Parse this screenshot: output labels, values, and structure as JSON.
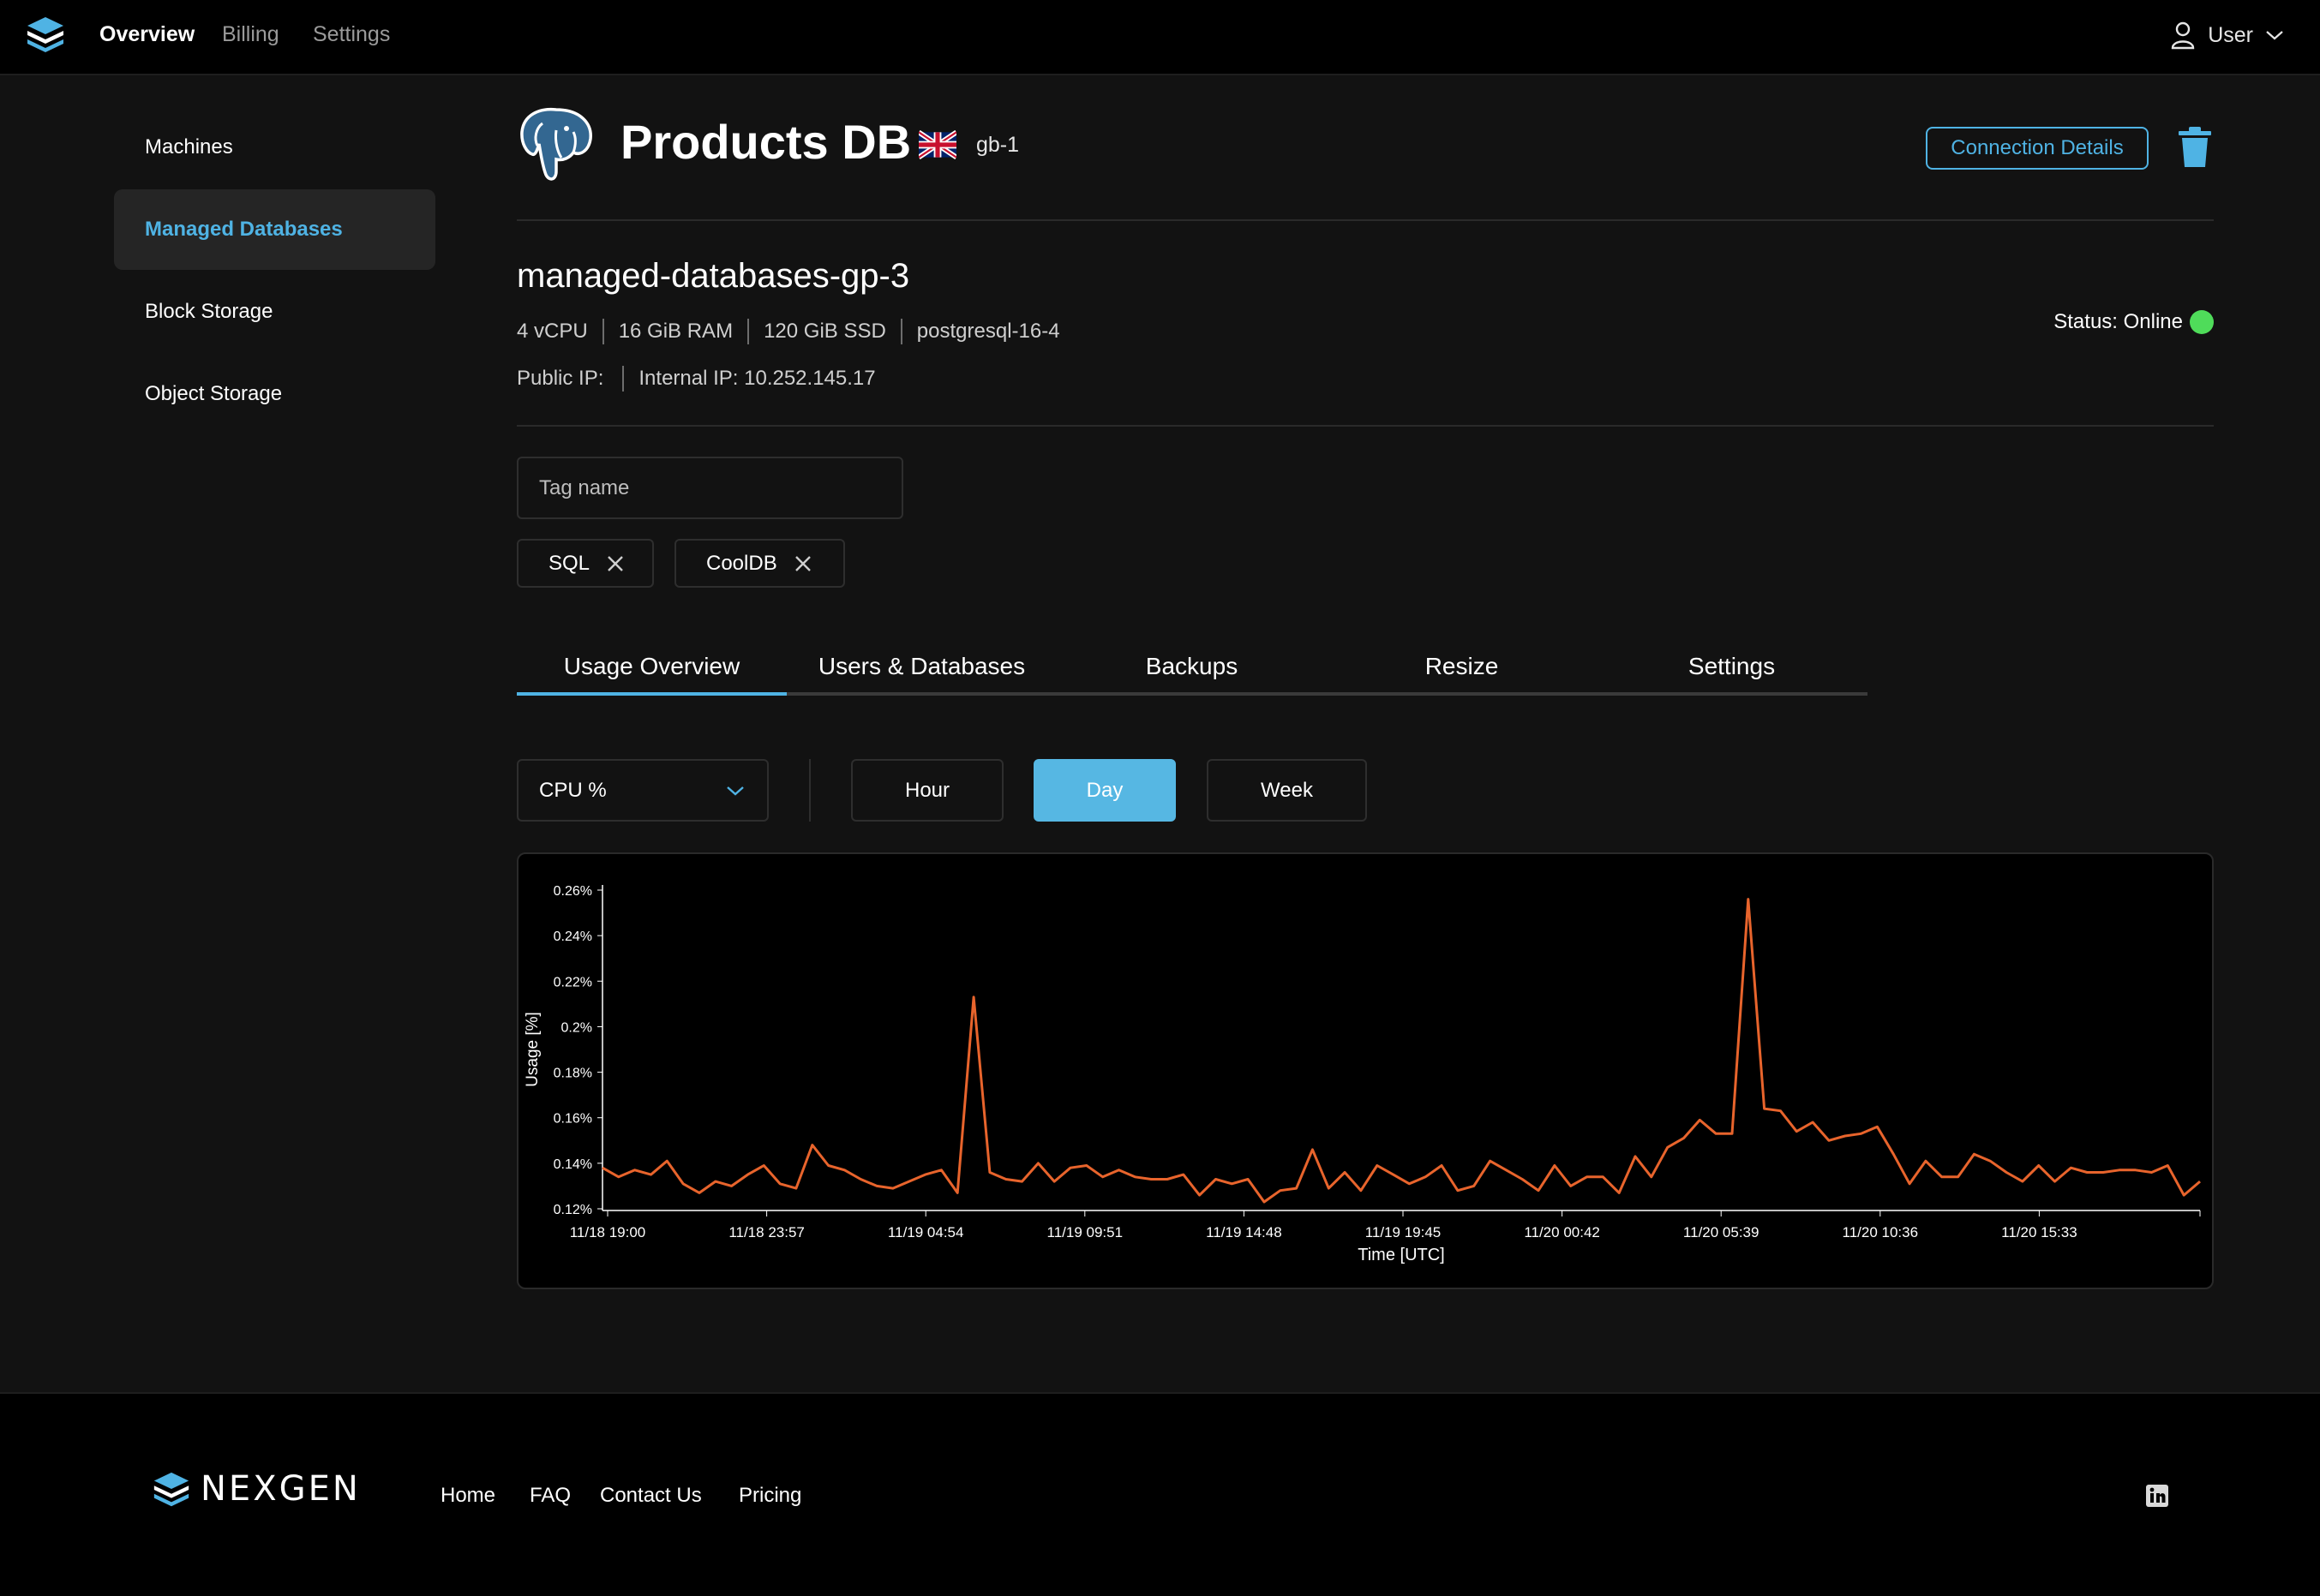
{
  "topnav": {
    "links": [
      {
        "label": "Overview",
        "active": true
      },
      {
        "label": "Billing",
        "active": false
      },
      {
        "label": "Settings",
        "active": false
      }
    ],
    "user_label": "User"
  },
  "sidebar": {
    "items": [
      {
        "label": "Machines",
        "active": false
      },
      {
        "label": "Managed Databases",
        "active": true
      },
      {
        "label": "Block Storage",
        "active": false
      },
      {
        "label": "Object Storage",
        "active": false
      }
    ]
  },
  "header": {
    "title": "Products DB",
    "flag_icon": "uk-flag-icon",
    "region": "gb-1",
    "connection_button": "Connection Details"
  },
  "instance": {
    "name": "managed-databases-gp-3",
    "specs": [
      "4 vCPU",
      "16 GiB RAM",
      "120 GiB SSD",
      "postgresql-16-4"
    ],
    "public_ip": "Public IP:",
    "internal_ip": "Internal IP: 10.252.145.17",
    "status": "Status: Online",
    "status_color": "#4fdc5a"
  },
  "tags": {
    "placeholder": "Tag name",
    "chips": [
      "SQL",
      "CoolDB"
    ]
  },
  "tabs": [
    "Usage Overview",
    "Users & Databases",
    "Backups",
    "Resize",
    "Settings"
  ],
  "controls": {
    "metric": "CPU %",
    "ranges": [
      {
        "label": "Hour",
        "active": false
      },
      {
        "label": "Day",
        "active": true
      },
      {
        "label": "Week",
        "active": false
      }
    ]
  },
  "chart_data": {
    "type": "line",
    "title": "",
    "xlabel": "Time [UTC]",
    "ylabel": "Usage [%]",
    "ylim": [
      0.12,
      0.26
    ],
    "yticks": [
      "0.12%",
      "0.14%",
      "0.16%",
      "0.18%",
      "0.2%",
      "0.22%",
      "0.24%",
      "0.26%"
    ],
    "xticks": [
      "11/18 19:00",
      "11/18 23:57",
      "11/19 04:54",
      "11/19 09:51",
      "11/19 14:48",
      "11/19 19:45",
      "11/20 00:42",
      "11/20 05:39",
      "11/20 10:36",
      "11/20 15:33"
    ],
    "grid": false,
    "line_color": "#e8642c",
    "series": [
      {
        "values": [
          0.138,
          0.134,
          0.137,
          0.135,
          0.141,
          0.131,
          0.127,
          0.132,
          0.13,
          0.135,
          0.139,
          0.131,
          0.129,
          0.148,
          0.139,
          0.137,
          0.133,
          0.13,
          0.129,
          0.132,
          0.135,
          0.137,
          0.127,
          0.213,
          0.136,
          0.133,
          0.132,
          0.14,
          0.132,
          0.138,
          0.139,
          0.134,
          0.137,
          0.134,
          0.133,
          0.133,
          0.135,
          0.126,
          0.133,
          0.131,
          0.133,
          0.123,
          0.128,
          0.129,
          0.146,
          0.129,
          0.136,
          0.128,
          0.139,
          0.135,
          0.131,
          0.134,
          0.139,
          0.128,
          0.13,
          0.141,
          0.137,
          0.133,
          0.128,
          0.139,
          0.13,
          0.134,
          0.134,
          0.127,
          0.143,
          0.134,
          0.147,
          0.151,
          0.159,
          0.153,
          0.153,
          0.256,
          0.164,
          0.163,
          0.154,
          0.158,
          0.15,
          0.152,
          0.153,
          0.156,
          0.144,
          0.131,
          0.141,
          0.134,
          0.134,
          0.144,
          0.141,
          0.136,
          0.132,
          0.139,
          0.132,
          0.138,
          0.136,
          0.136,
          0.137,
          0.137,
          0.136,
          0.139,
          0.126,
          0.132
        ]
      }
    ]
  },
  "footer": {
    "brand": "NEXGEN",
    "links": [
      "Home",
      "FAQ",
      "Contact Us",
      "Pricing"
    ],
    "social_icon": "linkedin-icon"
  }
}
